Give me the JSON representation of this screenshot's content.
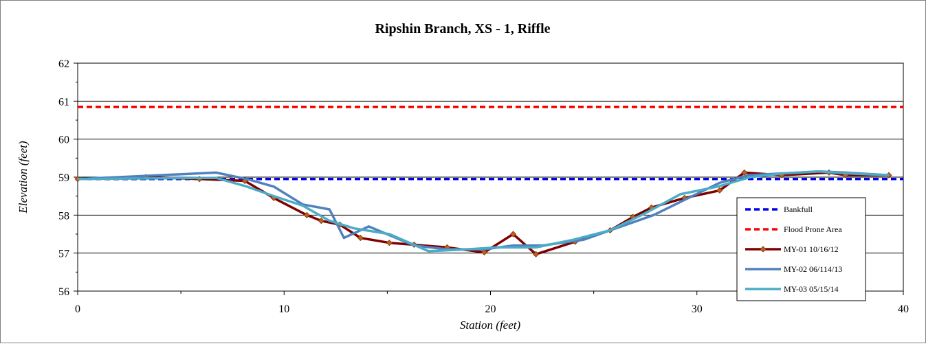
{
  "chart_data": {
    "type": "line",
    "title": "Ripshin Branch, XS - 1, Riffle",
    "xlabel": "Station (feet)",
    "ylabel": "Elevation (feet)",
    "xlim": [
      0,
      40
    ],
    "ylim": [
      56,
      62
    ],
    "xticks": [
      "0",
      "10",
      "20",
      "30",
      "40"
    ],
    "yticks": [
      "56",
      "57",
      "58",
      "59",
      "60",
      "61",
      "62"
    ],
    "grid": "horizontal",
    "legend": "bottom-right",
    "series": [
      {
        "name": "Bankfull",
        "color": "#0000ee",
        "dash": "dashed",
        "marker": "none",
        "x": [
          0,
          40
        ],
        "y": [
          58.95,
          58.95
        ]
      },
      {
        "name": "Flood Prone Area",
        "color": "#ff0000",
        "dash": "dashed",
        "marker": "none",
        "x": [
          0,
          40
        ],
        "y": [
          60.85,
          60.85
        ]
      },
      {
        "name": "MY-01 10/16/12",
        "color": "#7f0000",
        "dash": "solid",
        "marker": "diamond",
        "x": [
          0,
          3.3,
          5.9,
          8.1,
          9.5,
          11.1,
          11.8,
          12.7,
          13.7,
          15.1,
          16.3,
          17.9,
          19.7,
          21.1,
          22.2,
          24.1,
          25.8,
          26.9,
          27.8,
          29.4,
          31.1,
          32.3,
          34.1,
          36.4,
          37.2,
          39.3
        ],
        "y": [
          58.95,
          59.0,
          58.95,
          58.9,
          58.45,
          58.0,
          57.85,
          57.75,
          57.4,
          57.27,
          57.22,
          57.15,
          57.02,
          57.5,
          56.97,
          57.3,
          57.6,
          57.95,
          58.2,
          58.45,
          58.65,
          59.12,
          59.05,
          59.12,
          59.05,
          59.05
        ]
      },
      {
        "name": "MY-02 06/114/13",
        "color": "#4f81bd",
        "dash": "solid",
        "marker": "none",
        "x": [
          0,
          6.7,
          8.2,
          9.5,
          10.9,
          12.2,
          12.9,
          14.1,
          16.3,
          17.9,
          19.7,
          21.1,
          22.5,
          24.5,
          25.8,
          27.9,
          29.4,
          31.1,
          32.5,
          34.2,
          35.9,
          37.2,
          39.3
        ],
        "y": [
          58.95,
          59.12,
          58.95,
          58.75,
          58.28,
          58.15,
          57.4,
          57.7,
          57.2,
          57.1,
          57.1,
          57.2,
          57.2,
          57.35,
          57.6,
          58.0,
          58.4,
          58.85,
          59.05,
          59.1,
          59.15,
          59.12,
          59.05
        ]
      },
      {
        "name": "MY-03 05/15/14",
        "color": "#4bacc6",
        "dash": "solid",
        "marker": "none",
        "x": [
          0,
          6.7,
          8.2,
          9.5,
          10.9,
          12.2,
          13.4,
          15.1,
          17.0,
          18.9,
          20.3,
          22.2,
          24.0,
          25.8,
          27.5,
          29.2,
          31.0,
          32.6,
          34.2,
          35.9,
          37.3,
          39.3
        ],
        "y": [
          58.95,
          58.98,
          58.75,
          58.5,
          58.25,
          57.85,
          57.65,
          57.5,
          57.05,
          57.1,
          57.15,
          57.15,
          57.35,
          57.6,
          58.05,
          58.55,
          58.75,
          59.0,
          59.1,
          59.15,
          59.1,
          59.05
        ]
      }
    ]
  }
}
